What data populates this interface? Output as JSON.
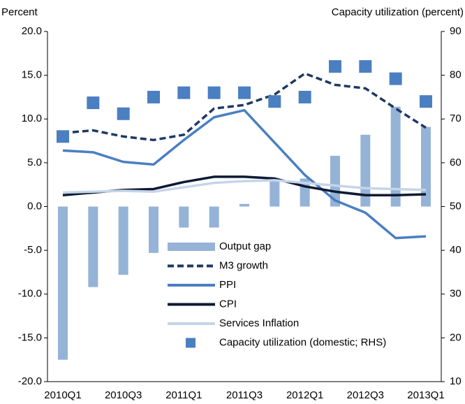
{
  "chart_data": {
    "type": "combo",
    "ylabel": "Percent",
    "y2label": "Capacity utilization (percent)",
    "categories": [
      "2010Q1",
      null,
      "2010Q3",
      null,
      "2011Q1",
      null,
      "2011Q3",
      null,
      "2012Q1",
      null,
      "2012Q3",
      null,
      "2013Q1"
    ],
    "ylim": [
      -20,
      20
    ],
    "yticks": [
      {
        "value": -20,
        "label": "-20.0"
      },
      {
        "value": -15,
        "label": "-15.0"
      },
      {
        "value": -10,
        "label": "-10.0"
      },
      {
        "value": -5,
        "label": "-5.0"
      },
      {
        "value": 0,
        "label": "0.0"
      },
      {
        "value": 5,
        "label": "5.0"
      },
      {
        "value": 10,
        "label": "10.0"
      },
      {
        "value": 15,
        "label": "15.0"
      },
      {
        "value": 20,
        "label": "20.0"
      }
    ],
    "y2lim": [
      10,
      90
    ],
    "y2ticks": [
      10,
      20,
      30,
      40,
      50,
      60,
      70,
      80,
      90
    ],
    "series": [
      {
        "name": "Output gap",
        "type": "bar",
        "color": "#95b3d7",
        "values": [
          -17.5,
          -9.2,
          -7.8,
          -5.3,
          -2.4,
          -2.4,
          0.3,
          3.1,
          3.2,
          5.8,
          8.2,
          11.4,
          9.1
        ]
      },
      {
        "name": "M3 growth",
        "type": "line",
        "style": "dashed",
        "color": "#1f3864",
        "values": [
          8.4,
          8.7,
          8.0,
          7.6,
          8.2,
          11.2,
          11.6,
          12.8,
          15.2,
          13.9,
          13.5,
          11.2,
          9.0
        ]
      },
      {
        "name": "PPI",
        "type": "line",
        "color": "#4a7fc1",
        "values": [
          6.4,
          6.2,
          5.1,
          4.8,
          7.6,
          10.2,
          11.0,
          7.3,
          3.6,
          0.7,
          -0.7,
          -3.6,
          -3.4
        ]
      },
      {
        "name": "CPI",
        "type": "line",
        "color": "#0d1a33",
        "values": [
          1.3,
          1.6,
          1.9,
          2.0,
          2.8,
          3.4,
          3.4,
          3.2,
          2.3,
          1.7,
          1.3,
          1.3,
          1.4
        ]
      },
      {
        "name": "Services Inflation",
        "type": "line",
        "color": "#c5d5ea",
        "values": [
          1.6,
          1.7,
          1.8,
          1.7,
          2.2,
          2.7,
          2.9,
          3.0,
          2.7,
          2.4,
          2.1,
          2.0,
          1.9
        ]
      },
      {
        "name": "Capacity utilization (domestic; RHS)",
        "type": "square",
        "axis": "y2",
        "color": "#4a7fc1",
        "values": [
          66.0,
          73.7,
          71.2,
          75.0,
          76.0,
          76.0,
          76.0,
          74.0,
          75.0,
          82.0,
          82.0,
          79.2,
          74.0
        ]
      }
    ]
  }
}
